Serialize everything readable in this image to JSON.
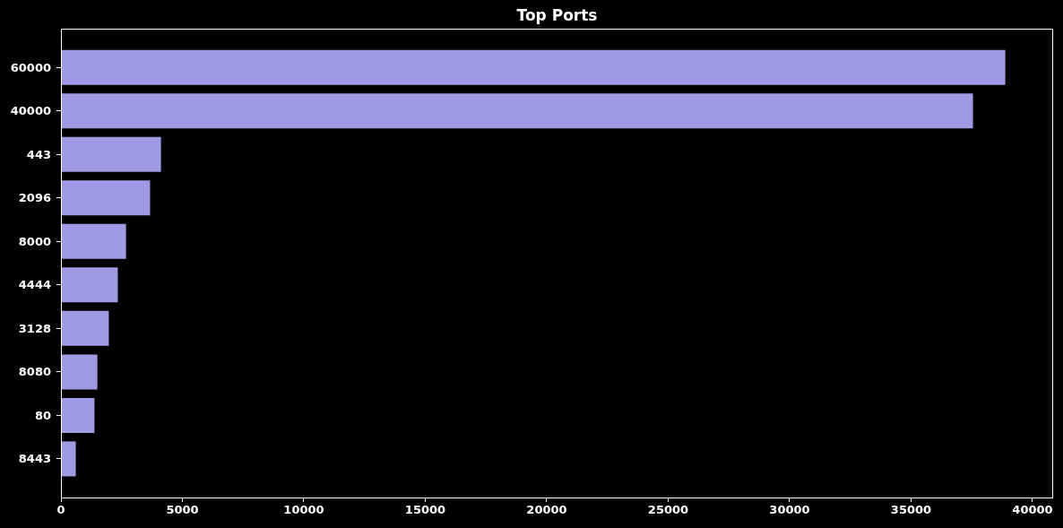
{
  "chart_data": {
    "type": "bar",
    "orientation": "horizontal",
    "title": "Top Ports",
    "categories": [
      "60000",
      "40000",
      "443",
      "2096",
      "8000",
      "4444",
      "3128",
      "8080",
      "80",
      "8443"
    ],
    "values": [
      38880,
      37550,
      4120,
      3670,
      2680,
      2340,
      1970,
      1500,
      1380,
      610
    ],
    "color": "#9e9ae4",
    "xlim": [
      0,
      40850
    ],
    "xticks": [
      0,
      5000,
      10000,
      15000,
      20000,
      25000,
      30000,
      35000,
      40000
    ]
  }
}
